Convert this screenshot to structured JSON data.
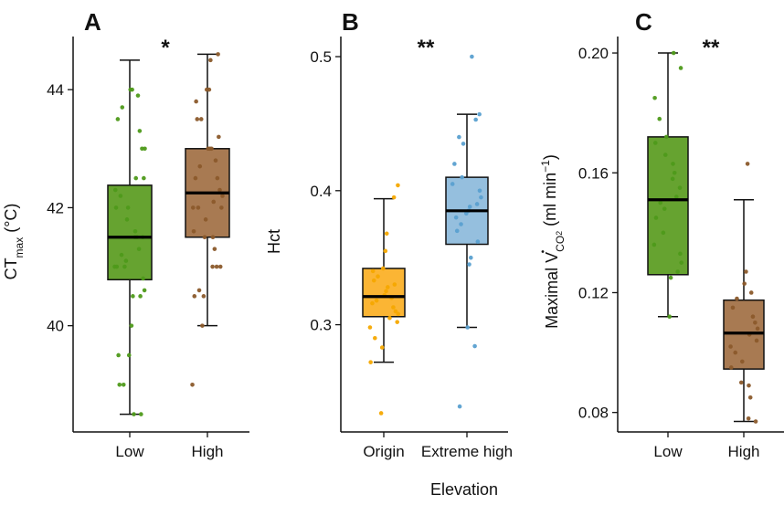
{
  "xlabel_shared": "Elevation",
  "chart_data": [
    {
      "type": "box",
      "panel": "A",
      "significance": "*",
      "ylabel_main": "CT",
      "ylabel_sub": "max",
      "ylabel_tail": " (°C)",
      "ylim": [
        38.2,
        44.9
      ],
      "yticks": [
        "40",
        "42",
        "44"
      ],
      "categories": [
        "Low",
        "High"
      ],
      "colors": [
        "#66a330",
        "#a87a52"
      ],
      "point_colors": [
        "#4e9a1a",
        "#8b5a2b"
      ],
      "boxes": [
        {
          "min": 38.5,
          "q1": 40.78,
          "median": 41.5,
          "q3": 42.38,
          "max": 44.5
        },
        {
          "min": 40.0,
          "q1": 41.5,
          "median": 42.25,
          "q3": 43.0,
          "max": 44.6
        }
      ],
      "points": [
        [
          38.5,
          38.5,
          39.0,
          39.0,
          39.5,
          39.5,
          40.0,
          40.5,
          40.5,
          40.6,
          40.8,
          41.0,
          41.0,
          41.0,
          41.1,
          41.2,
          41.3,
          41.5,
          41.5,
          41.5,
          41.6,
          41.8,
          42.0,
          42.0,
          42.2,
          42.3,
          42.5,
          42.5,
          43.0,
          43.0,
          43.3,
          43.5,
          43.7,
          43.9,
          44.0,
          44.0
        ],
        [
          39.0,
          40.0,
          40.5,
          40.5,
          40.6,
          41.0,
          41.0,
          41.0,
          41.3,
          41.5,
          41.5,
          41.6,
          41.8,
          42.0,
          42.0,
          42.0,
          42.1,
          42.2,
          42.3,
          42.5,
          42.5,
          42.7,
          42.8,
          43.0,
          43.0,
          43.0,
          43.2,
          43.5,
          43.5,
          43.8,
          44.0,
          44.0,
          44.5,
          44.6
        ]
      ]
    },
    {
      "type": "box",
      "panel": "B",
      "significance": "**",
      "ylabel_main": "Hct",
      "ylim": [
        0.22,
        0.515
      ],
      "yticks": [
        "0.3",
        "0.4",
        "0.5"
      ],
      "categories": [
        "Origin",
        "Extreme high"
      ],
      "colors": [
        "#fbb534",
        "#95bfde"
      ],
      "point_colors": [
        "#f5a800",
        "#5aa0d0"
      ],
      "boxes": [
        {
          "min": 0.272,
          "q1": 0.306,
          "median": 0.321,
          "q3": 0.342,
          "max": 0.394
        },
        {
          "min": 0.298,
          "q1": 0.36,
          "median": 0.385,
          "q3": 0.41,
          "max": 0.457
        }
      ],
      "points": [
        [
          0.234,
          0.272,
          0.283,
          0.29,
          0.298,
          0.302,
          0.305,
          0.308,
          0.31,
          0.313,
          0.316,
          0.318,
          0.32,
          0.322,
          0.325,
          0.328,
          0.33,
          0.333,
          0.336,
          0.34,
          0.342,
          0.355,
          0.368,
          0.395,
          0.404
        ],
        [
          0.239,
          0.284,
          0.298,
          0.345,
          0.35,
          0.362,
          0.37,
          0.375,
          0.38,
          0.383,
          0.385,
          0.388,
          0.39,
          0.395,
          0.4,
          0.405,
          0.41,
          0.42,
          0.435,
          0.44,
          0.453,
          0.457,
          0.5
        ]
      ]
    },
    {
      "type": "box",
      "panel": "C",
      "significance": "**",
      "ylabel_main": "Maximal V",
      "ylabel_sub": "CO",
      "ylabel_subsub": "2",
      "ylabel_tail": " (ml min",
      "ylabel_sup": "−1",
      "ylabel_end": ")",
      "ylim": [
        0.0735,
        0.2055
      ],
      "yticks": [
        "0.08",
        "0.12",
        "0.16",
        "0.20"
      ],
      "categories": [
        "Low",
        "High"
      ],
      "colors": [
        "#66a330",
        "#a87a52"
      ],
      "point_colors": [
        "#4e9a1a",
        "#8b5a2b"
      ],
      "boxes": [
        {
          "min": 0.112,
          "q1": 0.126,
          "median": 0.151,
          "q3": 0.172,
          "max": 0.2
        },
        {
          "min": 0.077,
          "q1": 0.0945,
          "median": 0.1065,
          "q3": 0.1175,
          "max": 0.151
        }
      ],
      "points": [
        [
          0.112,
          0.125,
          0.127,
          0.13,
          0.133,
          0.136,
          0.14,
          0.145,
          0.148,
          0.15,
          0.152,
          0.155,
          0.158,
          0.16,
          0.163,
          0.166,
          0.17,
          0.172,
          0.178,
          0.185,
          0.195,
          0.2
        ],
        [
          0.077,
          0.078,
          0.085,
          0.089,
          0.09,
          0.095,
          0.097,
          0.1,
          0.102,
          0.104,
          0.106,
          0.108,
          0.11,
          0.112,
          0.115,
          0.118,
          0.12,
          0.123,
          0.127,
          0.163
        ]
      ]
    }
  ]
}
